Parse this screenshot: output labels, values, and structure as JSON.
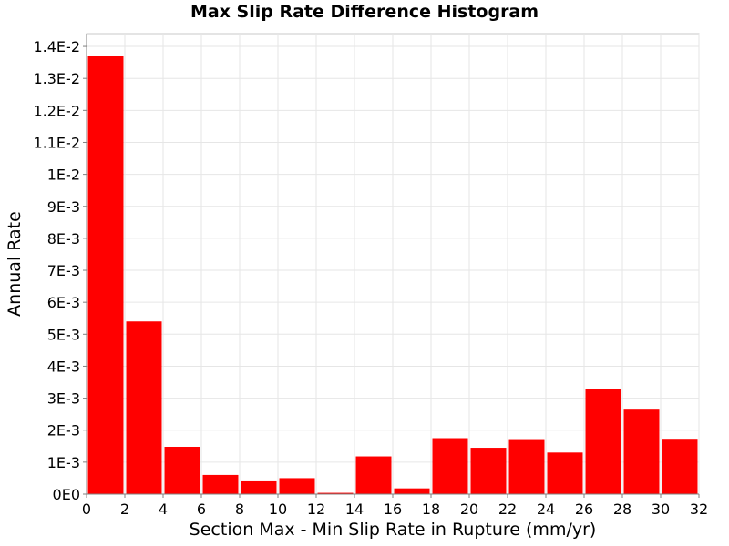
{
  "chart_data": {
    "type": "bar",
    "title": "Max Slip Rate Difference Histogram",
    "xlabel": "Section Max - Min Slip Rate in Rupture (mm/yr)",
    "ylabel": "Annual Rate",
    "bin_width": 2,
    "bins": [
      {
        "x_start": 0,
        "value": 0.0137
      },
      {
        "x_start": 2,
        "value": 0.0054
      },
      {
        "x_start": 4,
        "value": 0.00148
      },
      {
        "x_start": 6,
        "value": 0.0006
      },
      {
        "x_start": 8,
        "value": 0.0004
      },
      {
        "x_start": 10,
        "value": 0.0005
      },
      {
        "x_start": 12,
        "value": 4e-05
      },
      {
        "x_start": 14,
        "value": 0.00118
      },
      {
        "x_start": 16,
        "value": 0.00018
      },
      {
        "x_start": 18,
        "value": 0.00175
      },
      {
        "x_start": 20,
        "value": 0.00145
      },
      {
        "x_start": 22,
        "value": 0.00172
      },
      {
        "x_start": 24,
        "value": 0.0013
      },
      {
        "x_start": 26,
        "value": 0.0033
      },
      {
        "x_start": 28,
        "value": 0.00267
      },
      {
        "x_start": 30,
        "value": 0.00173
      }
    ],
    "xlim": [
      0,
      32
    ],
    "ylim": [
      0,
      0.0144
    ],
    "x_ticks": [
      0,
      2,
      4,
      6,
      8,
      10,
      12,
      14,
      16,
      18,
      20,
      22,
      24,
      26,
      28,
      30,
      32
    ],
    "x_tick_labels": [
      "0",
      "2",
      "4",
      "6",
      "8",
      "10",
      "12",
      "14",
      "16",
      "18",
      "20",
      "22",
      "24",
      "26",
      "28",
      "30",
      "32"
    ],
    "y_ticks": [
      0,
      0.001,
      0.002,
      0.003,
      0.004,
      0.005,
      0.006,
      0.007,
      0.008,
      0.009,
      0.01,
      0.011,
      0.012,
      0.013,
      0.014
    ],
    "y_tick_labels": [
      "0E0",
      "1E-3",
      "2E-3",
      "3E-3",
      "4E-3",
      "5E-3",
      "6E-3",
      "7E-3",
      "8E-3",
      "9E-3",
      "1E-2",
      "1.1E-2",
      "1.2E-2",
      "1.3E-2",
      "1.4E-2"
    ],
    "bar_color": "#ff0000",
    "grid": true,
    "legend": "none"
  }
}
